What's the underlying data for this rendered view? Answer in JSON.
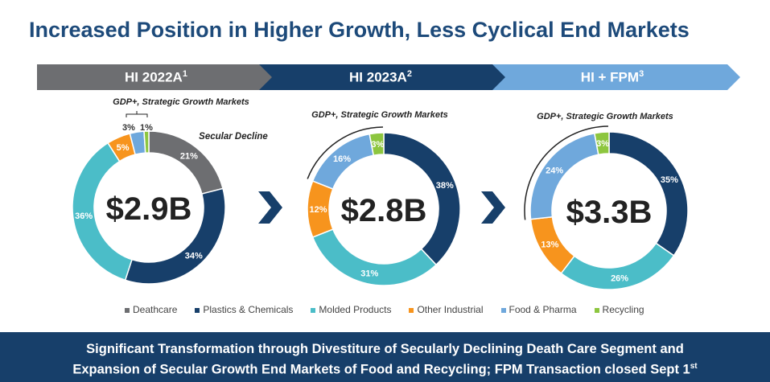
{
  "title": "Increased Position in Higher Growth, Less Cyclical End Markets",
  "banners": [
    {
      "label": "HI 2022A",
      "sup": "1",
      "color": "#6d6e71"
    },
    {
      "label": "HI 2023A",
      "sup": "2",
      "color": "#173f6a"
    },
    {
      "label": "HI + FPM",
      "sup": "3",
      "color": "#6fa8dc"
    }
  ],
  "annotations": {
    "gdp": "GDP+, Strategic Growth Markets",
    "secular": "Secular Decline"
  },
  "colors": {
    "Deathcare": "#6d6e71",
    "Plastics & Chemicals": "#173f6a",
    "Molded Products": "#4bbdc8",
    "Other Industrial": "#f7941d",
    "Food & Pharma": "#6fa8dc",
    "Recycling": "#8dc63f",
    "footer": "#173f6a",
    "chevron": "#173f6a"
  },
  "chart_data": [
    {
      "type": "pie",
      "subtype": "donut",
      "center_label": "$2.9B",
      "categories": [
        "Deathcare",
        "Plastics & Chemicals",
        "Molded Products",
        "Other Industrial",
        "Food & Pharma",
        "Recycling"
      ],
      "values": [
        21,
        34,
        36,
        5,
        3,
        1
      ],
      "labels": [
        "21%",
        "34%",
        "36%",
        "5%",
        "3%",
        "1%"
      ]
    },
    {
      "type": "pie",
      "subtype": "donut",
      "center_label": "$2.8B",
      "categories": [
        "Plastics & Chemicals",
        "Molded Products",
        "Other Industrial",
        "Food & Pharma",
        "Recycling"
      ],
      "values": [
        38,
        31,
        12,
        16,
        3
      ],
      "labels": [
        "38%",
        "31%",
        "12%",
        "16%",
        "3%"
      ]
    },
    {
      "type": "pie",
      "subtype": "donut",
      "center_label": "$3.3B",
      "categories": [
        "Plastics & Chemicals",
        "Molded Products",
        "Other Industrial",
        "Food & Pharma",
        "Recycling"
      ],
      "values": [
        35,
        26,
        13,
        24,
        3
      ],
      "labels": [
        "35%",
        "26%",
        "13%",
        "24%",
        "3%"
      ]
    }
  ],
  "legend": [
    "Deathcare",
    "Plastics & Chemicals",
    "Molded Products",
    "Other Industrial",
    "Food & Pharma",
    "Recycling"
  ],
  "footer": {
    "line1": "Significant Transformation through Divestiture of Secularly Declining Death Care Segment and",
    "line2": "Expansion of Secular Growth End Markets of Food and Recycling; FPM Transaction closed Sept 1",
    "line2_sup": "st"
  }
}
